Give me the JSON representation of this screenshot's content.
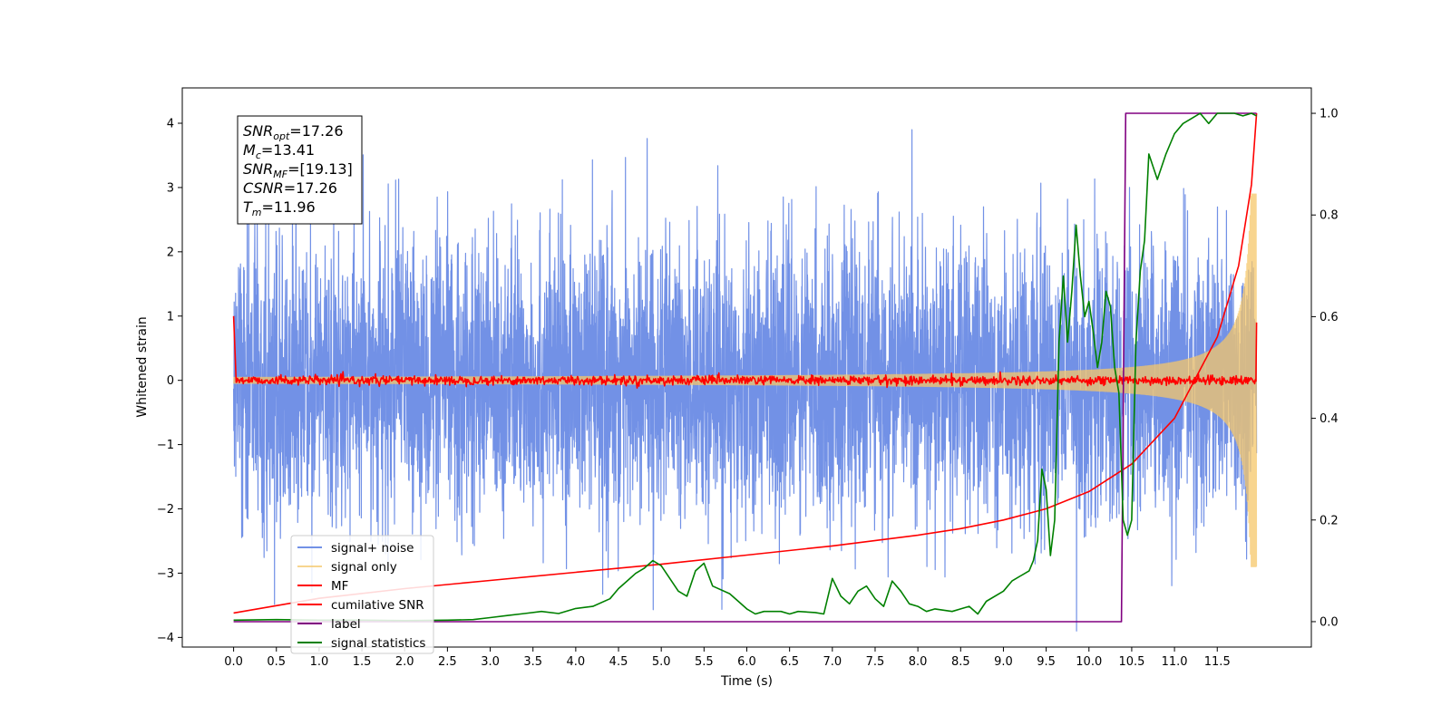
{
  "chart_data": {
    "type": "line",
    "xlabel": "Time (s)",
    "ylabel": "Whitened strain",
    "xlim": [
      -0.6,
      12.6
    ],
    "ylim": [
      -4.15,
      4.55
    ],
    "ylim_right": [
      -0.05,
      1.05
    ],
    "x_ticks": [
      "0.0",
      "0.5",
      "1.0",
      "1.5",
      "2.0",
      "2.5",
      "3.0",
      "3.5",
      "4.0",
      "4.5",
      "5.0",
      "5.5",
      "6.0",
      "6.5",
      "7.0",
      "7.5",
      "8.0",
      "8.5",
      "9.0",
      "9.5",
      "10.0",
      "10.5",
      "11.0",
      "11.5"
    ],
    "y_ticks_left": [
      "−4",
      "−3",
      "−2",
      "−1",
      "0",
      "1",
      "2",
      "3",
      "4"
    ],
    "y_ticks_right": [
      "0.0",
      "0.2",
      "0.4",
      "0.6",
      "0.8",
      "1.0"
    ],
    "grid": false,
    "legend_position": "lower-left",
    "annotation": {
      "lines": [
        {
          "base": "SNR",
          "sub": "opt",
          "value": "=17.26"
        },
        {
          "base": "M",
          "sub": "c",
          "value": "=13.41"
        },
        {
          "base": "SNR",
          "sub": "MF",
          "value": "=[19.13]"
        },
        {
          "base": "CSNR",
          "sub": "",
          "value": "=17.26"
        },
        {
          "base": "T",
          "sub": "m",
          "value": "=11.96"
        }
      ]
    },
    "series": [
      {
        "name": "signal+ noise",
        "color": "#7291e6",
        "axis": "left",
        "style": "noise",
        "t_start": 0.0,
        "t_end": 11.96,
        "sigma": 1.0,
        "max_abs": 3.9
      },
      {
        "name": "signal only",
        "color": "#f5c76a",
        "axis": "left",
        "style": "chirp",
        "t_start": 0.0,
        "t_end": 11.96,
        "peak_amplitude": 2.9
      },
      {
        "name": "MF",
        "color": "#ff0000",
        "axis": "left",
        "style": "mf",
        "t_start": 0.0,
        "t_end": 11.96,
        "start_value": 1.0,
        "end_value": 0.9
      },
      {
        "name": "cumilative SNR",
        "color": "#ff0000",
        "axis": "right",
        "x": [
          0.0,
          1.0,
          2.0,
          3.0,
          4.0,
          5.0,
          6.0,
          7.0,
          8.0,
          8.5,
          9.0,
          9.5,
          10.0,
          10.5,
          11.0,
          11.5,
          11.75,
          11.9,
          11.96
        ],
        "y": [
          0.017,
          0.046,
          0.065,
          0.081,
          0.097,
          0.113,
          0.131,
          0.149,
          0.17,
          0.183,
          0.2,
          0.222,
          0.256,
          0.31,
          0.4,
          0.56,
          0.7,
          0.86,
          1.0
        ]
      },
      {
        "name": "label",
        "color": "#800080",
        "axis": "right",
        "x": [
          0.0,
          10.38,
          10.43,
          11.96
        ],
        "y": [
          0.0,
          0.0,
          1.0,
          1.0
        ]
      },
      {
        "name": "signal statistics",
        "color": "#008000",
        "axis": "right",
        "x": [
          0.0,
          0.5,
          1.0,
          1.5,
          2.0,
          2.5,
          2.8,
          3.0,
          3.2,
          3.4,
          3.6,
          3.8,
          4.0,
          4.2,
          4.4,
          4.5,
          4.6,
          4.7,
          4.8,
          4.9,
          5.0,
          5.1,
          5.2,
          5.3,
          5.4,
          5.5,
          5.6,
          5.8,
          5.9,
          6.0,
          6.1,
          6.2,
          6.4,
          6.5,
          6.6,
          6.8,
          6.9,
          7.0,
          7.1,
          7.2,
          7.3,
          7.4,
          7.5,
          7.6,
          7.7,
          7.8,
          7.9,
          8.0,
          8.1,
          8.2,
          8.4,
          8.5,
          8.6,
          8.7,
          8.8,
          9.0,
          9.1,
          9.2,
          9.3,
          9.35,
          9.4,
          9.45,
          9.5,
          9.55,
          9.6,
          9.65,
          9.7,
          9.75,
          9.8,
          9.85,
          9.9,
          9.95,
          10.0,
          10.05,
          10.1,
          10.15,
          10.2,
          10.25,
          10.3,
          10.35,
          10.4,
          10.45,
          10.5,
          10.55,
          10.6,
          10.65,
          10.7,
          10.8,
          10.9,
          11.0,
          11.1,
          11.2,
          11.3,
          11.4,
          11.5,
          11.6,
          11.7,
          11.8,
          11.9,
          11.96
        ],
        "y": [
          0.003,
          0.004,
          0.003,
          0.003,
          0.002,
          0.003,
          0.004,
          0.008,
          0.012,
          0.016,
          0.02,
          0.016,
          0.026,
          0.03,
          0.045,
          0.065,
          0.08,
          0.095,
          0.105,
          0.12,
          0.11,
          0.085,
          0.06,
          0.05,
          0.1,
          0.115,
          0.07,
          0.055,
          0.04,
          0.025,
          0.015,
          0.02,
          0.02,
          0.015,
          0.02,
          0.018,
          0.015,
          0.085,
          0.05,
          0.035,
          0.06,
          0.07,
          0.045,
          0.03,
          0.08,
          0.06,
          0.035,
          0.03,
          0.02,
          0.025,
          0.02,
          0.025,
          0.03,
          0.015,
          0.04,
          0.06,
          0.08,
          0.09,
          0.1,
          0.12,
          0.16,
          0.3,
          0.26,
          0.13,
          0.2,
          0.55,
          0.68,
          0.55,
          0.65,
          0.78,
          0.68,
          0.6,
          0.63,
          0.57,
          0.5,
          0.55,
          0.65,
          0.62,
          0.5,
          0.45,
          0.2,
          0.17,
          0.2,
          0.55,
          0.69,
          0.75,
          0.92,
          0.87,
          0.92,
          0.96,
          0.98,
          0.99,
          1.0,
          0.98,
          1.0,
          1.0,
          1.0,
          0.995,
          1.0,
          0.995
        ]
      }
    ]
  }
}
